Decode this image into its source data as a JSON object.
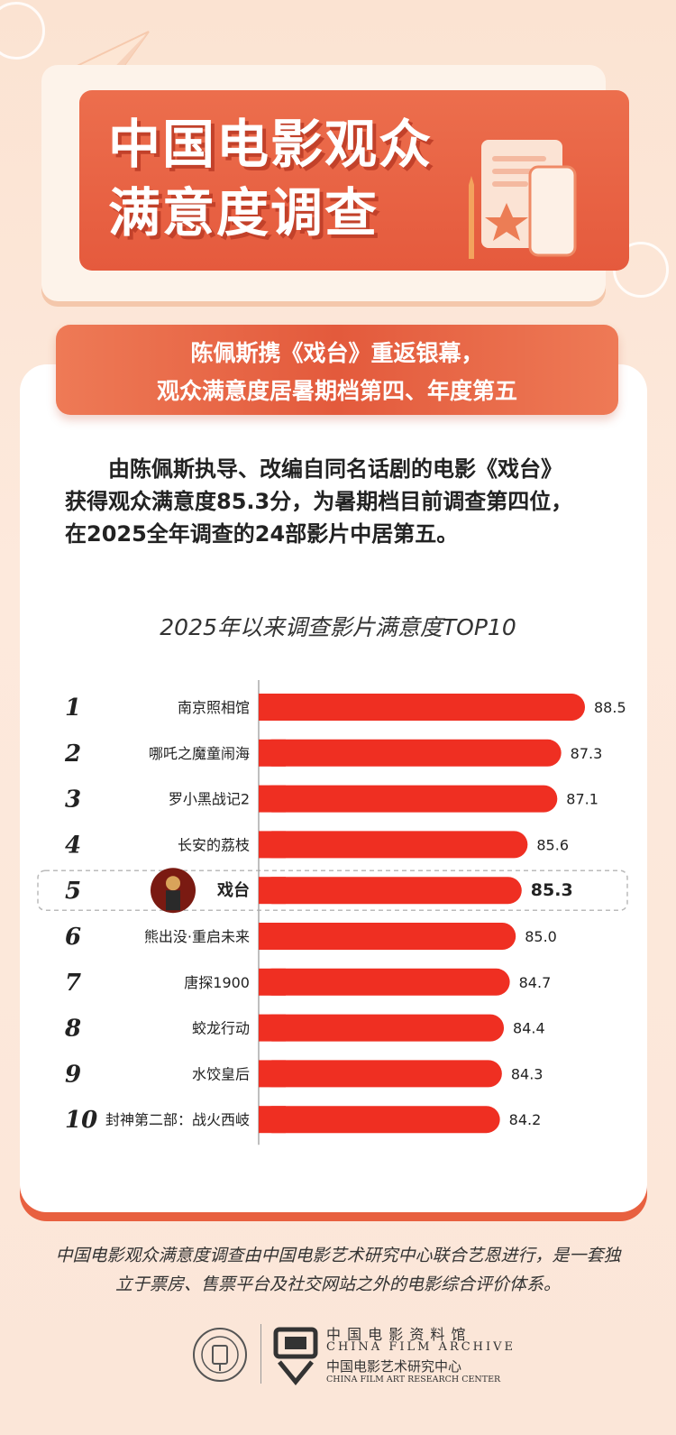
{
  "header": {
    "title_line1": "中国电影观众",
    "title_line2": "满意度调查"
  },
  "banner": {
    "line1": "陈佩斯携《戏台》重返银幕，",
    "line2": "观众满意度居暑期档第四、年度第五"
  },
  "intro": {
    "line1": "由陈佩斯执导、改编自同名话剧的电影《戏台》",
    "line2": "获得观众满意度85.3分，为暑期档目前调查第四位，",
    "line3": "在2025全年调查的24部影片中居第五。"
  },
  "colors": {
    "bar": "#ef2f22",
    "accent": "#e55a3d",
    "card": "#ffffff"
  },
  "chart_data": {
    "type": "bar",
    "orientation": "horizontal",
    "title": "2025年以来调查影片满意度TOP10",
    "categories": [
      "南京照相馆",
      "哪吒之魔童闹海",
      "罗小黑战记2",
      "长安的荔枝",
      "戏台",
      "熊出没·重启未来",
      "唐探1900",
      "蛟龙行动",
      "水饺皇后",
      "封神第二部：战火西岐"
    ],
    "ranks": [
      "1",
      "2",
      "3",
      "4",
      "5",
      "6",
      "7",
      "8",
      "9",
      "10"
    ],
    "values": [
      88.5,
      87.3,
      87.1,
      85.6,
      85.3,
      85.0,
      84.7,
      84.4,
      84.3,
      84.2
    ],
    "value_labels": [
      "88.5",
      "87.3",
      "87.1",
      "85.6",
      "85.3",
      "85.0",
      "84.7",
      "84.4",
      "84.3",
      "84.2"
    ],
    "highlight_index": 4,
    "xlim": [
      72,
      88.5
    ],
    "grid": false,
    "legend": "none"
  },
  "footer": {
    "line1": "中国电影观众满意度调查由中国电影艺术研究中心联合艺恩进行，是一套独",
    "line2": "立于票房、售票平台及社交网站之外的电影综合评价体系。",
    "org_cn1": "中 国 电 影 资 料 馆",
    "org_en1": "CHINA FILM ARCHIVE",
    "org_cn2": "中国电影艺术研究中心",
    "org_en2": "CHINA FILM ART RESEARCH CENTER"
  }
}
